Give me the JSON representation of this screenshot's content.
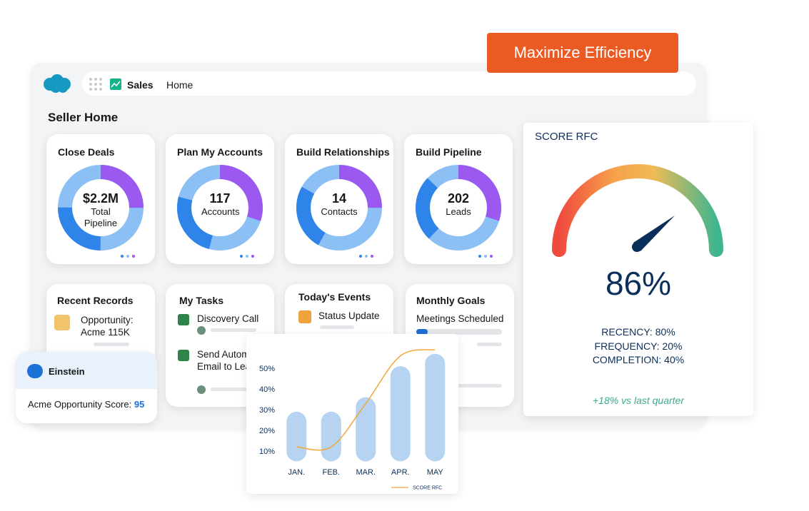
{
  "header": {
    "banner": "Maximize Efficiency",
    "app": "Sales",
    "tab": "Home",
    "page_title": "Seller Home"
  },
  "summary_cards": [
    {
      "title": "Close Deals",
      "value": "$2.2M",
      "label": "Total Pipeline"
    },
    {
      "title": "Plan My Accounts",
      "value": "117",
      "label": "Accounts"
    },
    {
      "title": "Build Relationships",
      "value": "14",
      "label": "Contacts"
    },
    {
      "title": "Build Pipeline",
      "value": "202",
      "label": "Leads"
    }
  ],
  "recent_records": {
    "title": "Recent Records",
    "item": "Opportunity: Acme 115K"
  },
  "my_tasks": {
    "title": "My Tasks",
    "items": [
      "Discovery Call",
      "Send Automated Email to Lea"
    ]
  },
  "todays_events": {
    "title": "Today's Events",
    "item": "Status Update"
  },
  "monthly_goals": {
    "title": "Monthly Goals",
    "item": "Meetings Scheduled"
  },
  "einstein": {
    "title": "Einstein",
    "score_label": "Acme Opportunity Score:",
    "score": "95"
  },
  "score_card": {
    "title": "SCORE RFC",
    "score": "86%",
    "metrics": [
      "RECENCY: 80%",
      "FREQUENCY: 20%",
      "COMPLETION: 40%"
    ],
    "trend": "+18% vs last quarter"
  },
  "chart_data": {
    "type": "bar",
    "categories": [
      "JAN.",
      "FEB.",
      "MAR.",
      "APR.",
      "MAY"
    ],
    "series": [
      {
        "type": "bar",
        "color": "#a9cdee",
        "values": [
          29,
          29,
          36,
          51,
          57
        ]
      },
      {
        "type": "line",
        "name": "SCORE RFC",
        "color": "#f3a73a",
        "values": [
          12,
          12,
          33,
          56,
          59
        ]
      }
    ],
    "ylim": [
      5,
      60
    ],
    "yticks": [
      {
        "value": 10,
        "label": "10%"
      },
      {
        "value": 20,
        "label": "20%"
      },
      {
        "value": 30,
        "label": "30%"
      },
      {
        "value": 40,
        "label": "40%"
      },
      {
        "value": 50,
        "label": "50%"
      }
    ]
  }
}
